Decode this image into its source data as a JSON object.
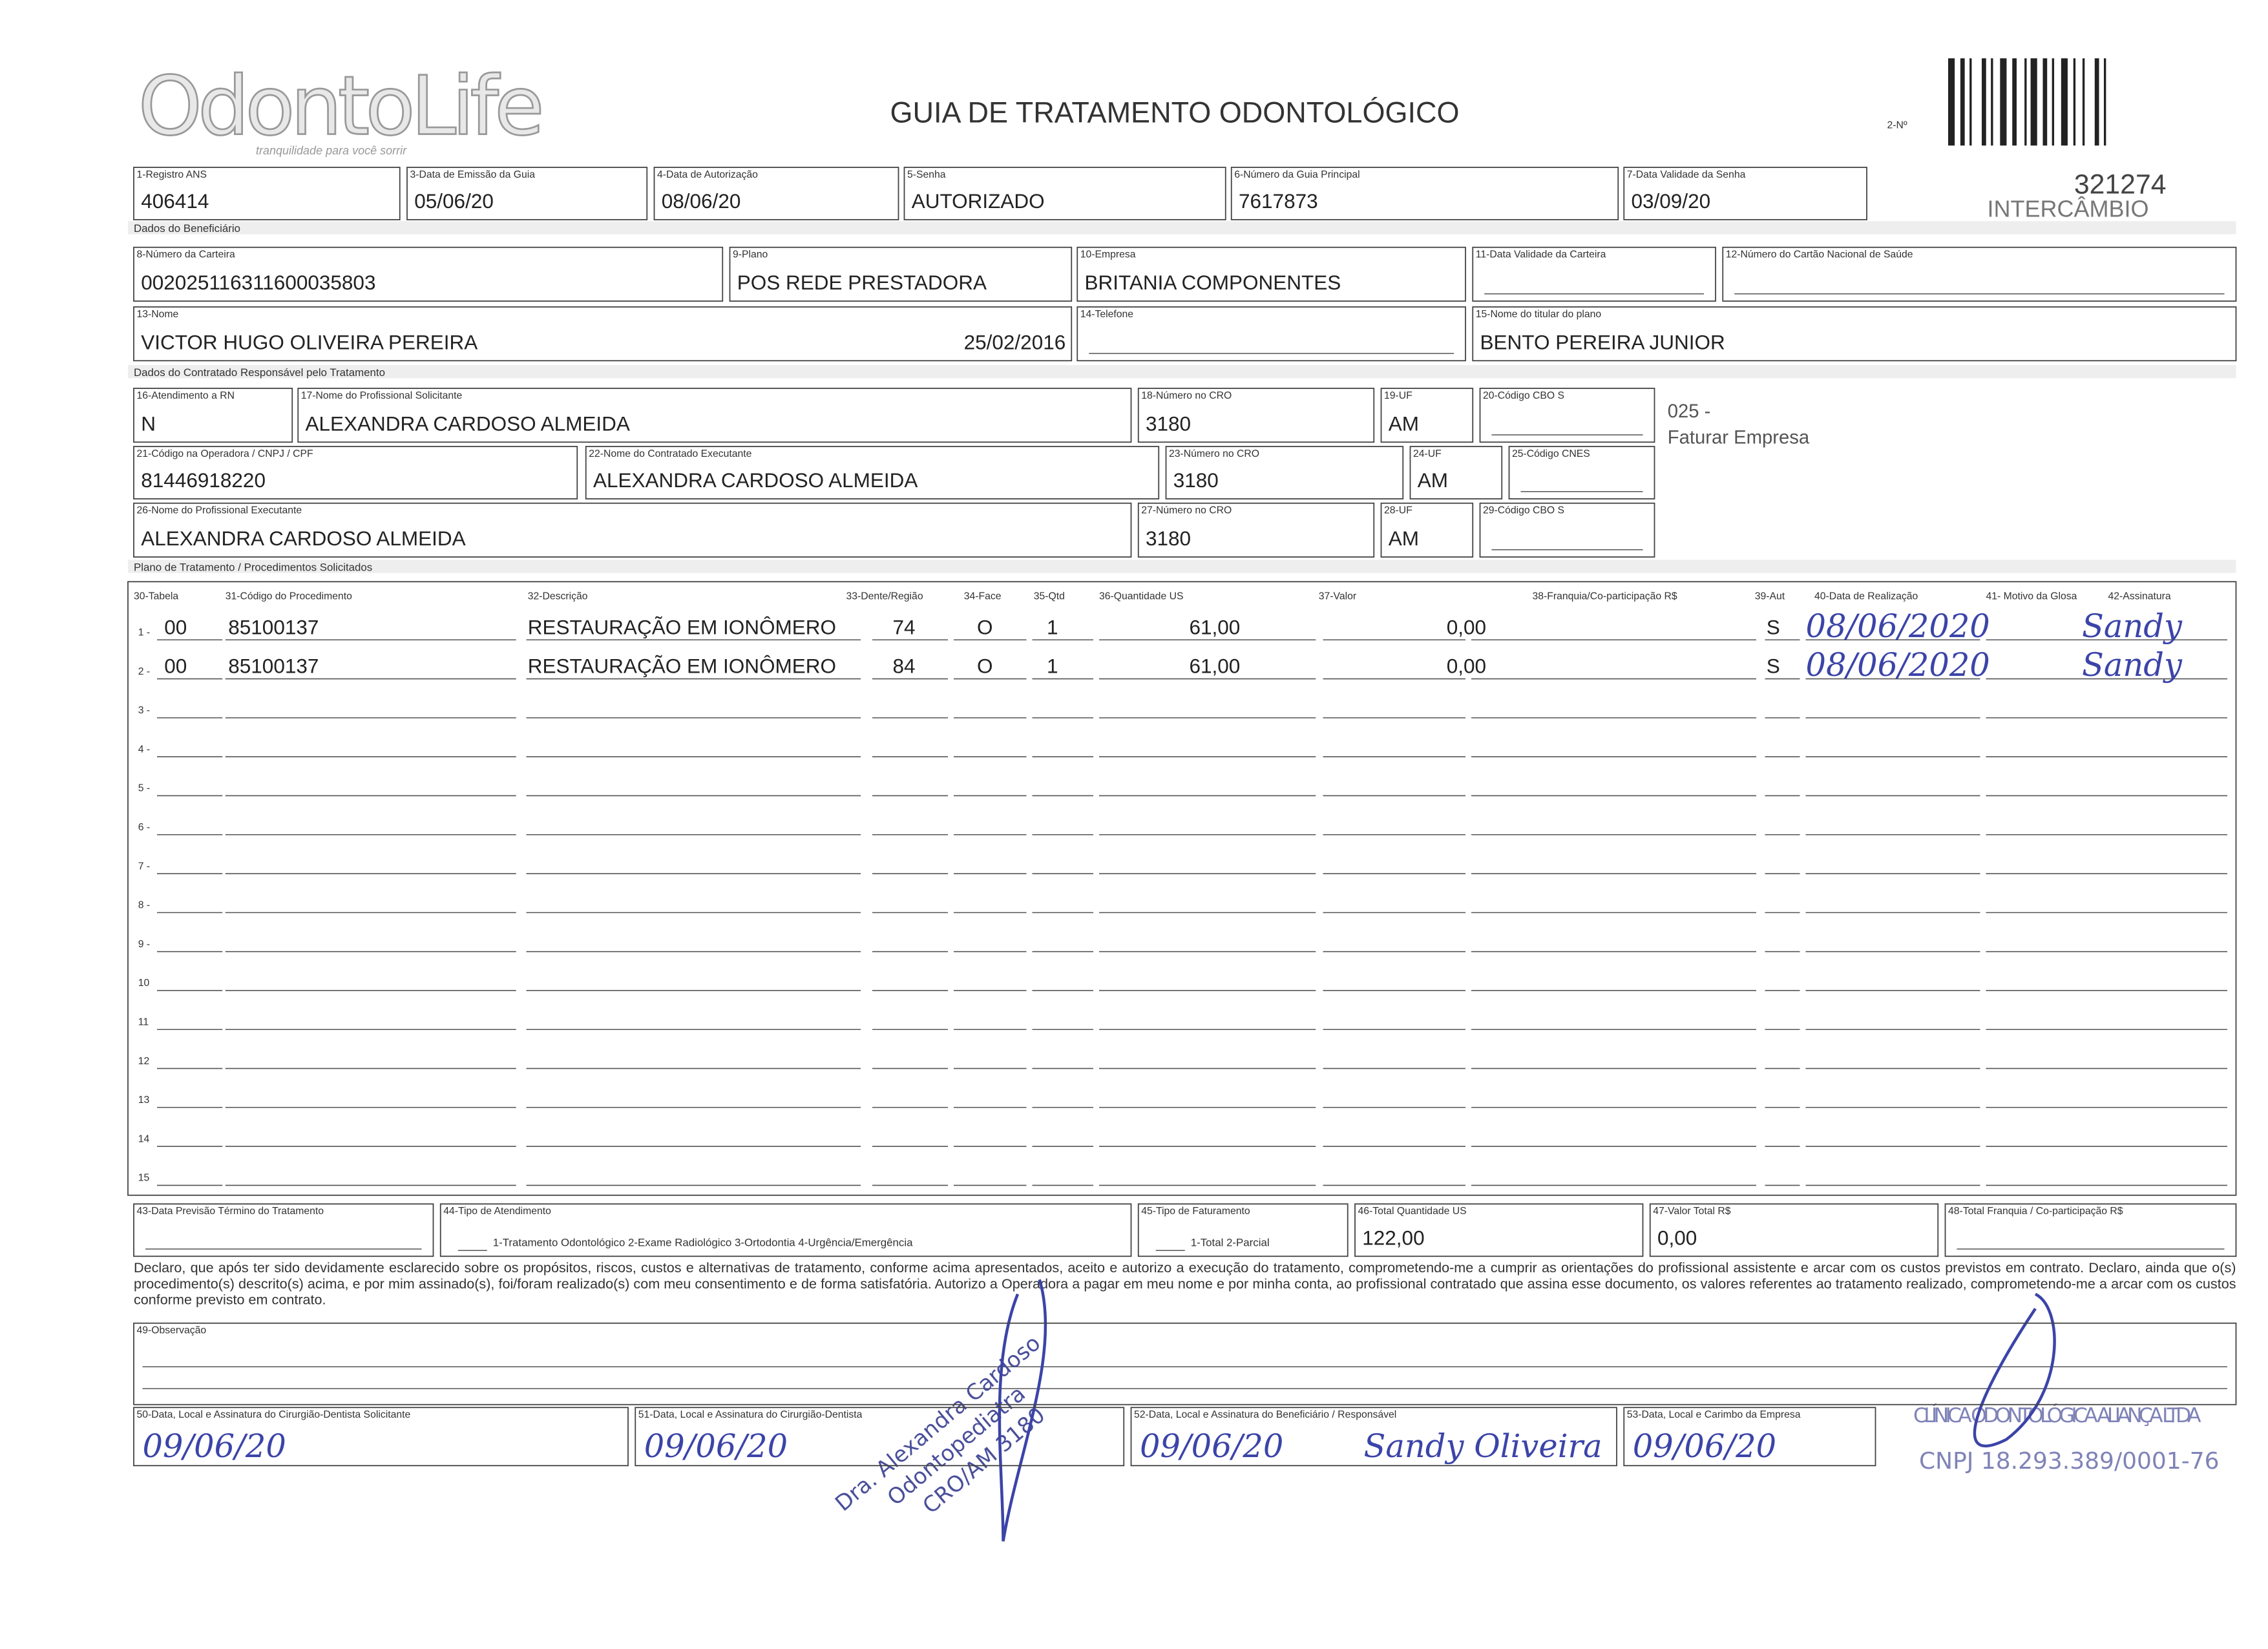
{
  "header": {
    "logo": "OdontoLife",
    "tagline": "tranquilidade para você sorrir",
    "title": "GUIA DE TRATAMENTO ODONTOLÓGICO",
    "number_label": "2-Nº",
    "number": "321274",
    "type": "INTERCÂMBIO"
  },
  "fields": [
    {
      "label": "1-Registro ANS",
      "value": "406414"
    },
    {
      "label": "3-Data de Emissão da Guia",
      "value": "05/06/20"
    },
    {
      "label": "4-Data de Autorização",
      "value": "08/06/20"
    },
    {
      "label": "5-Senha",
      "value": "AUTORIZADO"
    },
    {
      "label": "6-Número da Guia Principal",
      "value": "7617873"
    },
    {
      "label": "7-Data Validade da Senha",
      "value": "03/09/20"
    },
    {
      "label": "8-Número da Carteira",
      "value": "002025116311600035803"
    },
    {
      "label": "9-Plano",
      "value": "POS REDE PRESTADORA"
    },
    {
      "label": "10-Empresa",
      "value": "BRITANIA COMPONENTES"
    },
    {
      "label": "11-Data Validade da Carteira"
    },
    {
      "label": "12-Número do Cartão Nacional de Saúde"
    },
    {
      "label": "13-Nome",
      "value": "VICTOR HUGO OLIVEIRA PEREIRA",
      "extra": "25/02/2016"
    },
    {
      "label": "14-Telefone"
    },
    {
      "label": "15-Nome do titular do plano",
      "value": "BENTO PEREIRA JUNIOR"
    },
    {
      "label": "16-Atendimento a RN",
      "value": "N"
    },
    {
      "label": "17-Nome do Profissional Solicitante",
      "value": "ALEXANDRA CARDOSO ALMEIDA"
    },
    {
      "label": "18-Número no CRO",
      "value": "3180"
    },
    {
      "label": "19-UF",
      "value": "AM"
    },
    {
      "label": "20-Código CBO S"
    },
    {
      "label": "21-Código na Operadora / CNPJ / CPF",
      "value": "81446918220"
    },
    {
      "label": "22-Nome do Contratado Executante",
      "value": "ALEXANDRA CARDOSO ALMEIDA"
    },
    {
      "label": "23-Número no CRO",
      "value": "3180"
    },
    {
      "label": "24-UF",
      "value": "AM"
    },
    {
      "label": "25-Código CNES"
    },
    {
      "label": "26-Nome do Profissional Executante",
      "value": "ALEXANDRA CARDOSO ALMEIDA"
    },
    {
      "label": "27-Número no CRO",
      "value": "3180"
    },
    {
      "label": "28-UF",
      "value": "AM"
    },
    {
      "label": "29-Código CBO S"
    },
    {
      "label": "43-Data Previsão Término do Tratamento"
    },
    {
      "label": "44-Tipo de Atendimento",
      "options": "1-Tratamento Odontológico 2-Exame Radiológico 3-Ortodontia 4-Urgência/Emergência"
    },
    {
      "label": "45-Tipo de Faturamento",
      "options": "1-Total 2-Parcial"
    },
    {
      "label": "46-Total Quantidade US",
      "value": "122,00"
    },
    {
      "label": "47-Valor Total R$",
      "value": "0,00"
    },
    {
      "label": "48-Total Franquia / Co-participação R$"
    },
    {
      "label": "49-Observação"
    },
    {
      "label": "50-Data, Local e Assinatura do Cirurgião-Dentista Solicitante",
      "handwriting": "09/06/20"
    },
    {
      "label": "51-Data, Local e Assinatura do Cirurgião-Dentista",
      "handwriting": "09/06/20"
    },
    {
      "label": "52-Data, Local e Assinatura do Beneficiário / Responsável",
      "handwriting": "09/06/20",
      "signature": "Sandy Oliveira"
    },
    {
      "label": "53-Data, Local e Carimbo da Empresa",
      "handwriting": "09/06/20"
    }
  ],
  "note": [
    "025 -",
    "Faturar Empresa"
  ],
  "sections": [
    "Dados do Beneficiário",
    "Dados do Contratado Responsável pelo Tratamento",
    "Plano de Tratamento / Procedimentos Solicitados"
  ],
  "table": {
    "columns": [
      "30-Tabela",
      "31-Código do Procedimento",
      "32-Descrição",
      "33-Dente/Região",
      "34-Face",
      "35-Qtd",
      "36-Quantidade US",
      "37-Valor",
      "38-Franquia/Co-participação R$",
      "39-Aut",
      "40-Data de Realização",
      "41- Motivo da Glosa",
      "42-Assinatura"
    ],
    "rows": [
      {
        "number": "1 -",
        "tabela": "00",
        "codigo": "85100137",
        "descricao": "RESTAURAÇÃO EM IONÔMERO",
        "dente": "74",
        "face": "O",
        "qtd": "1",
        "us": "61,00",
        "valor": "0,00",
        "aut": "S",
        "data": "08/06/2020",
        "assinatura": "Sandy"
      },
      {
        "number": "2 -",
        "tabela": "00",
        "codigo": "85100137",
        "descricao": "RESTAURAÇÃO EM IONÔMERO",
        "dente": "84",
        "face": "O",
        "qtd": "1",
        "us": "61,00",
        "valor": "0,00",
        "aut": "S",
        "data": "08/06/2020",
        "assinatura": "Sandy"
      },
      {
        "number": "3 -"
      },
      {
        "number": "4 -"
      },
      {
        "number": "5 -"
      },
      {
        "number": "6 -"
      },
      {
        "number": "7 -"
      },
      {
        "number": "8 -"
      },
      {
        "number": "9 -"
      },
      {
        "number": "10"
      },
      {
        "number": "11"
      },
      {
        "number": "12"
      },
      {
        "number": "13"
      },
      {
        "number": "14"
      },
      {
        "number": "15"
      }
    ]
  },
  "declaration": "Declaro, que após ter sido devidamente esclarecido sobre os propósitos, riscos, custos e alternativas de tratamento, conforme acima apresentados, aceito e autorizo a execução do tratamento, comprometendo-me a cumprir as orientações do profissional assistente e arcar com os custos previstos em contrato. Declaro, ainda que o(s) procedimento(s) descrito(s) acima, e por mim assinado(s), foi/foram realizado(s) com meu consentimento e de forma satisfatória. Autorizo a Operadora a pagar em meu nome e por minha conta, ao profissional contratado que assina esse documento, os valores referentes ao tratamento realizado, comprometendo-me a arcar com os custos conforme previsto em contrato.",
  "stamps": {
    "dentist": [
      "Dra. Alexandra Cardoso",
      "Odontopediatra",
      "CRO/AM 3180"
    ],
    "company": [
      "CLÍNICA ODONTOLÓGICA ALIANÇA LTDA",
      "CNPJ 18.293.389/0001-76"
    ]
  }
}
